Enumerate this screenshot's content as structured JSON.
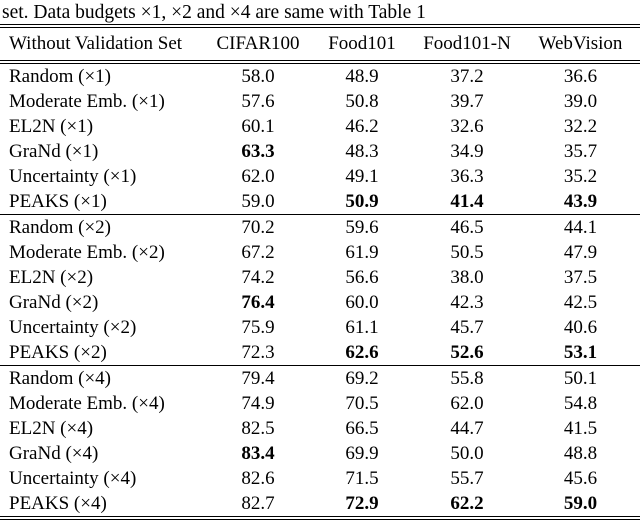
{
  "page": {
    "background": "#ffffff",
    "text_color": "#000000",
    "rule_color": "#000000"
  },
  "caption": "set. Data budgets ×1, ×2 and ×4 are same with Table 1",
  "table": {
    "columns": [
      "Without Validation Set",
      "CIFAR100",
      "Food101",
      "Food101-N",
      "WebVision"
    ],
    "groups": [
      {
        "budget": "×1",
        "rows": [
          {
            "label": "Random (×1)",
            "values": [
              "58.0",
              "48.9",
              "37.2",
              "36.6"
            ],
            "bold": [
              false,
              false,
              false,
              false
            ]
          },
          {
            "label": "Moderate Emb. (×1)",
            "values": [
              "57.6",
              "50.8",
              "39.7",
              "39.0"
            ],
            "bold": [
              false,
              false,
              false,
              false
            ]
          },
          {
            "label": "EL2N (×1)",
            "values": [
              "60.1",
              "46.2",
              "32.6",
              "32.2"
            ],
            "bold": [
              false,
              false,
              false,
              false
            ]
          },
          {
            "label": "GraNd (×1)",
            "values": [
              "63.3",
              "48.3",
              "34.9",
              "35.7"
            ],
            "bold": [
              true,
              false,
              false,
              false
            ]
          },
          {
            "label": "Uncertainty (×1)",
            "values": [
              "62.0",
              "49.1",
              "36.3",
              "35.2"
            ],
            "bold": [
              false,
              false,
              false,
              false
            ]
          },
          {
            "label": "PEAKS (×1)",
            "values": [
              "59.0",
              "50.9",
              "41.4",
              "43.9"
            ],
            "bold": [
              false,
              true,
              true,
              true
            ]
          }
        ]
      },
      {
        "budget": "×2",
        "rows": [
          {
            "label": "Random (×2)",
            "values": [
              "70.2",
              "59.6",
              "46.5",
              "44.1"
            ],
            "bold": [
              false,
              false,
              false,
              false
            ]
          },
          {
            "label": "Moderate Emb. (×2)",
            "values": [
              "67.2",
              "61.9",
              "50.5",
              "47.9"
            ],
            "bold": [
              false,
              false,
              false,
              false
            ]
          },
          {
            "label": "EL2N (×2)",
            "values": [
              "74.2",
              "56.6",
              "38.0",
              "37.5"
            ],
            "bold": [
              false,
              false,
              false,
              false
            ]
          },
          {
            "label": "GraNd (×2)",
            "values": [
              "76.4",
              "60.0",
              "42.3",
              "42.5"
            ],
            "bold": [
              true,
              false,
              false,
              false
            ]
          },
          {
            "label": "Uncertainty (×2)",
            "values": [
              "75.9",
              "61.1",
              "45.7",
              "40.6"
            ],
            "bold": [
              false,
              false,
              false,
              false
            ]
          },
          {
            "label": "PEAKS (×2)",
            "values": [
              "72.3",
              "62.6",
              "52.6",
              "53.1"
            ],
            "bold": [
              false,
              true,
              true,
              true
            ]
          }
        ]
      },
      {
        "budget": "×4",
        "rows": [
          {
            "label": "Random (×4)",
            "values": [
              "79.4",
              "69.2",
              "55.8",
              "50.1"
            ],
            "bold": [
              false,
              false,
              false,
              false
            ]
          },
          {
            "label": "Moderate Emb. (×4)",
            "values": [
              "74.9",
              "70.5",
              "62.0",
              "54.8"
            ],
            "bold": [
              false,
              false,
              false,
              false
            ]
          },
          {
            "label": "EL2N (×4)",
            "values": [
              "82.5",
              "66.5",
              "44.7",
              "41.5"
            ],
            "bold": [
              false,
              false,
              false,
              false
            ]
          },
          {
            "label": "GraNd (×4)",
            "values": [
              "83.4",
              "69.9",
              "50.0",
              "48.8"
            ],
            "bold": [
              true,
              false,
              false,
              false
            ]
          },
          {
            "label": "Uncertainty (×4)",
            "values": [
              "82.6",
              "71.5",
              "55.7",
              "45.6"
            ],
            "bold": [
              false,
              false,
              false,
              false
            ]
          },
          {
            "label": "PEAKS (×4)",
            "values": [
              "82.7",
              "72.9",
              "62.2",
              "59.0"
            ],
            "bold": [
              false,
              true,
              true,
              true
            ]
          }
        ]
      }
    ]
  }
}
